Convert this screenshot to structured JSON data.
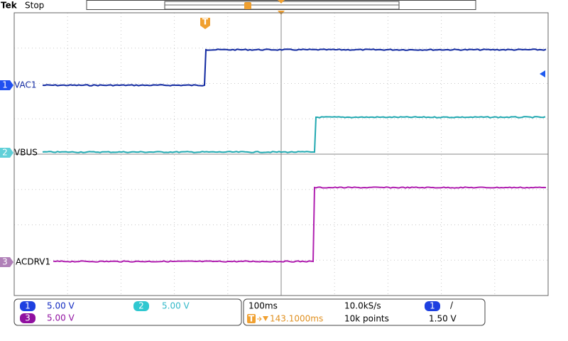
{
  "header": {
    "brand": "Tek",
    "status": "Stop",
    "trigger_marker": "T"
  },
  "channels": [
    {
      "number": "1",
      "label": "VAC1",
      "scale": "5.00 V"
    },
    {
      "number": "2",
      "label": "VBUS",
      "scale": "5.00 V"
    },
    {
      "number": "3",
      "label": "ACDRV1",
      "scale": "5.00 V"
    }
  ],
  "horizontal": {
    "time_per_div": "100ms",
    "sample_rate": "10.0kS/s",
    "position": "143.1000ms",
    "record_length": "10k points"
  },
  "trigger": {
    "source": "1",
    "slope": "/",
    "level": "1.50 V"
  }
}
